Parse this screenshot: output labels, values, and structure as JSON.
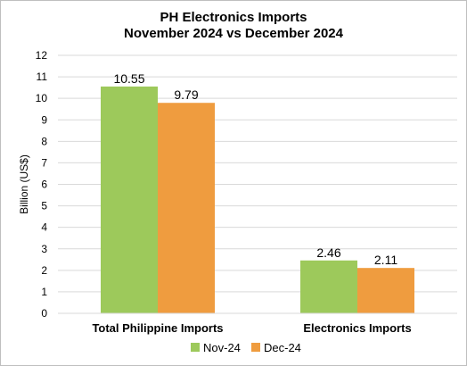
{
  "chart_data": {
    "type": "bar",
    "title_lines": [
      "PH Electronics Imports",
      "November 2024 vs December 2024"
    ],
    "xlabel": "",
    "ylabel": "Billion (US$)",
    "categories": [
      "Total Philippine Imports",
      "Electronics Imports"
    ],
    "series": [
      {
        "name": "Nov-24",
        "values": [
          10.55,
          2.46
        ],
        "labels": [
          "10.55",
          "2.46"
        ],
        "color": "#9dc95b"
      },
      {
        "name": "Dec-24",
        "values": [
          9.79,
          2.11
        ],
        "labels": [
          "9.79",
          "2.11"
        ],
        "color": "#ef9c3f"
      }
    ],
    "ylim": [
      0,
      12
    ],
    "yticks": [
      "0",
      "1",
      "2",
      "3",
      "4",
      "5",
      "6",
      "7",
      "8",
      "9",
      "10",
      "11",
      "12"
    ],
    "grid": true,
    "legend_position": "bottom"
  }
}
